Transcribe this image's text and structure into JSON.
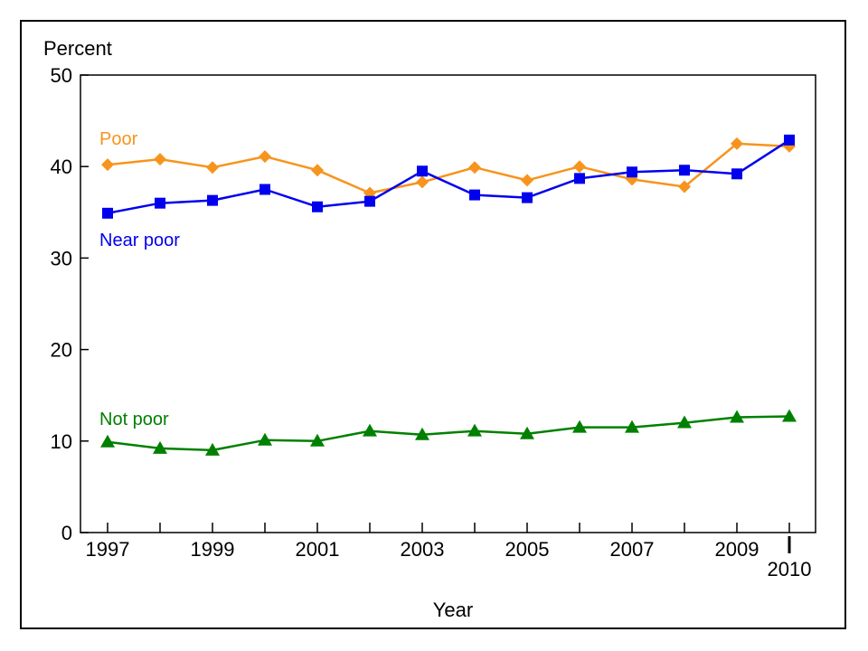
{
  "chart_data": {
    "type": "line",
    "title": "",
    "ylabel": "Percent",
    "xlabel": "Year",
    "ylim": [
      0,
      50
    ],
    "yticks": [
      0,
      10,
      20,
      30,
      40,
      50
    ],
    "xlim": [
      1997,
      2010
    ],
    "xticks": [
      1997,
      1998,
      1999,
      2000,
      2001,
      2002,
      2003,
      2004,
      2005,
      2006,
      2007,
      2008,
      2009,
      2010
    ],
    "xtick_labels": [
      "1997",
      "",
      "1999",
      "",
      "2001",
      "",
      "2003",
      "",
      "2005",
      "",
      "2007",
      "",
      "2009",
      "2010"
    ],
    "grid": false,
    "x": [
      1997,
      1998,
      1999,
      2000,
      2001,
      2002,
      2003,
      2004,
      2005,
      2006,
      2007,
      2008,
      2009,
      2010
    ],
    "series": [
      {
        "name": "Poor",
        "color": "#F7941D",
        "marker": "diamond",
        "values": [
          40.2,
          40.8,
          39.9,
          41.1,
          39.6,
          37.1,
          38.3,
          39.9,
          38.5,
          40.0,
          38.6,
          37.8,
          42.5,
          42.2
        ]
      },
      {
        "name": "Near poor",
        "color": "#0000EE",
        "marker": "square",
        "values": [
          34.9,
          36.0,
          36.3,
          37.5,
          35.6,
          36.2,
          39.5,
          36.9,
          36.6,
          38.7,
          39.4,
          39.6,
          39.2,
          42.9
        ]
      },
      {
        "name": "Not poor",
        "color": "#008000",
        "marker": "triangle",
        "values": [
          9.9,
          9.2,
          9.0,
          10.1,
          10.0,
          11.1,
          10.7,
          11.1,
          10.8,
          11.5,
          11.5,
          12.0,
          12.6,
          12.7
        ]
      }
    ]
  }
}
